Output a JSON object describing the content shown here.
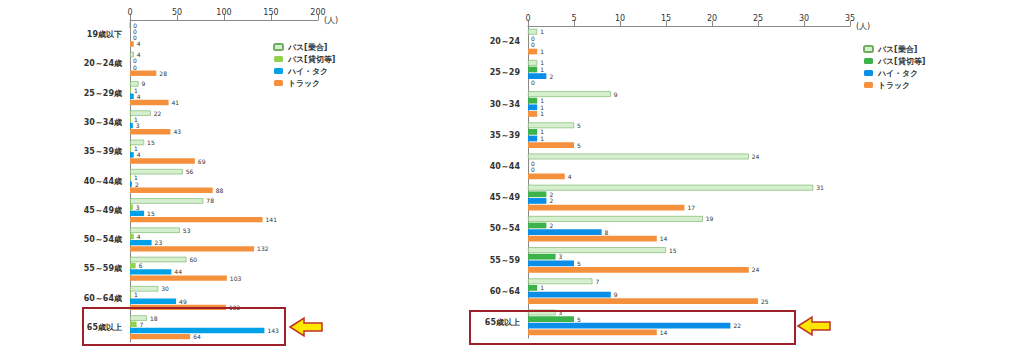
{
  "chart_data": [
    {
      "type": "bar",
      "orientation": "horizontal",
      "xlabel": "(人)",
      "categories": [
        "19歳以下",
        "20～24歳",
        "25～29歳",
        "30～34歳",
        "35～39歳",
        "40～44歳",
        "45～49歳",
        "50～54歳",
        "55～59歳",
        "60～64歳",
        "65歳以上"
      ],
      "series": [
        {
          "name": "バス[乗合]",
          "color": "#d6f0cf",
          "values": [
            0,
            4,
            9,
            22,
            15,
            56,
            78,
            53,
            60,
            30,
            18
          ]
        },
        {
          "name": "バス[貸切等]",
          "color": "#92d050",
          "values": [
            0,
            0,
            1,
            1,
            1,
            1,
            3,
            4,
            6,
            1,
            7
          ]
        },
        {
          "name": "ハイ・タク",
          "color": "#00a0e9",
          "values": [
            0,
            0,
            4,
            3,
            4,
            2,
            15,
            23,
            44,
            49,
            143
          ]
        },
        {
          "name": "トラック",
          "color": "#f5913c",
          "values": [
            4,
            28,
            41,
            43,
            69,
            88,
            141,
            132,
            103,
            102,
            64
          ]
        }
      ],
      "xlim": [
        0,
        200
      ],
      "xticks": [
        0,
        50,
        100,
        150,
        200
      ],
      "grid": false,
      "legend": "upper right",
      "data_labels": true
    },
    {
      "type": "bar",
      "orientation": "horizontal",
      "xlabel": "(人)",
      "categories": [
        "20～24",
        "25～29",
        "30～34",
        "35～39",
        "40～44",
        "45～49",
        "50～54",
        "55～59",
        "60～64",
        "65歳以上"
      ],
      "series": [
        {
          "name": "バス[乗合]",
          "color": "#d6f0cf",
          "values": [
            1,
            1,
            9,
            5,
            24,
            31,
            19,
            15,
            7,
            3
          ]
        },
        {
          "name": "バス[貸切等]",
          "color": "#3cb34a",
          "values": [
            0,
            1,
            1,
            1,
            0,
            2,
            2,
            3,
            1,
            5
          ]
        },
        {
          "name": "ハイ・タク",
          "color": "#0a8ee8",
          "values": [
            0,
            2,
            1,
            1,
            0,
            2,
            8,
            5,
            9,
            22
          ]
        },
        {
          "name": "トラック",
          "color": "#f5913c",
          "values": [
            1,
            0,
            1,
            5,
            4,
            17,
            14,
            24,
            25,
            14
          ]
        }
      ],
      "xlim": [
        0,
        35
      ],
      "xticks": [
        0,
        5,
        10,
        15,
        20,
        25,
        30,
        35
      ],
      "grid": false,
      "legend": "upper right",
      "data_labels": true
    }
  ]
}
